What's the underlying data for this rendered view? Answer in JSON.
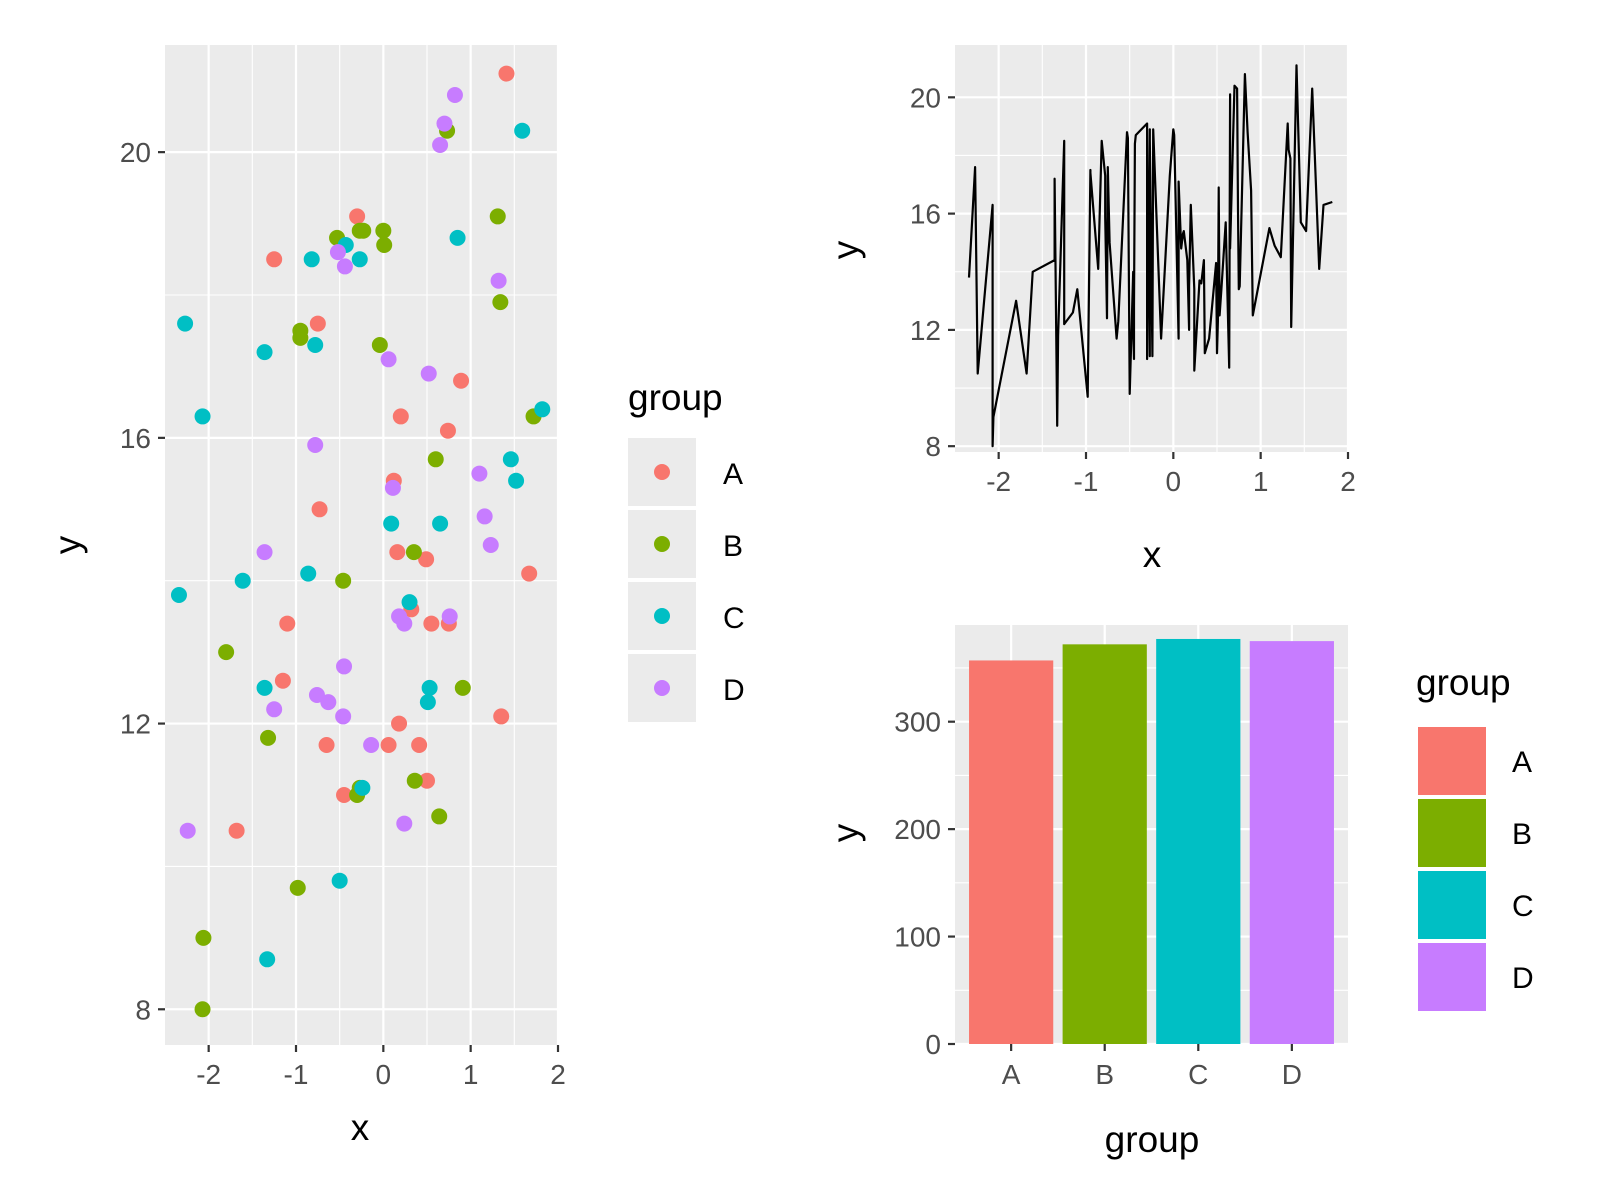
{
  "chart_data": [
    {
      "type": "scatter",
      "xlabel": "x",
      "ylabel": "y",
      "xlim": [
        -2.5,
        2.0
      ],
      "ylim": [
        7.5,
        21.5
      ],
      "x_ticks": [
        "-2",
        "-1",
        "0",
        "1",
        "2"
      ],
      "y_ticks": [
        "8",
        "12",
        "16",
        "20"
      ],
      "grid": true,
      "legend": {
        "title": "group",
        "placement": "right",
        "entries": [
          {
            "label": "A",
            "color": "#F8766D"
          },
          {
            "label": "B",
            "color": "#7CAE00"
          },
          {
            "label": "C",
            "color": "#00BFC4"
          },
          {
            "label": "D",
            "color": "#C77CFF"
          }
        ]
      },
      "series": [
        {
          "name": "A",
          "color": "#F8766D",
          "points": [
            [
              1.41,
              21.1
            ],
            [
              -0.3,
              19.1
            ],
            [
              -1.25,
              18.5
            ],
            [
              -0.75,
              17.6
            ],
            [
              0.89,
              16.8
            ],
            [
              0.2,
              16.3
            ],
            [
              0.74,
              16.1
            ],
            [
              0.12,
              15.4
            ],
            [
              -0.73,
              15.0
            ],
            [
              0.16,
              14.4
            ],
            [
              0.49,
              14.3
            ],
            [
              1.67,
              14.1
            ],
            [
              0.32,
              13.6
            ],
            [
              -1.1,
              13.4
            ],
            [
              0.55,
              13.4
            ],
            [
              0.75,
              13.4
            ],
            [
              -1.15,
              12.6
            ],
            [
              1.35,
              12.1
            ],
            [
              0.18,
              12.0
            ],
            [
              -0.65,
              11.7
            ],
            [
              0.06,
              11.7
            ],
            [
              0.41,
              11.7
            ],
            [
              0.5,
              11.2
            ],
            [
              -0.45,
              11.0
            ],
            [
              -1.68,
              10.5
            ]
          ]
        },
        {
          "name": "B",
          "color": "#7CAE00",
          "points": [
            [
              0.73,
              20.3
            ],
            [
              1.31,
              19.1
            ],
            [
              -0.27,
              18.9
            ],
            [
              -0.23,
              18.9
            ],
            [
              0.0,
              18.9
            ],
            [
              -0.53,
              18.8
            ],
            [
              0.01,
              18.7
            ],
            [
              1.34,
              17.9
            ],
            [
              -0.95,
              17.5
            ],
            [
              -0.95,
              17.4
            ],
            [
              -0.04,
              17.3
            ],
            [
              1.72,
              16.3
            ],
            [
              0.6,
              15.7
            ],
            [
              0.35,
              14.4
            ],
            [
              -0.46,
              14.0
            ],
            [
              -1.8,
              13.0
            ],
            [
              0.91,
              12.5
            ],
            [
              -1.32,
              11.8
            ],
            [
              0.36,
              11.2
            ],
            [
              -0.27,
              11.1
            ],
            [
              -0.3,
              11.0
            ],
            [
              0.64,
              10.7
            ],
            [
              -0.98,
              9.7
            ],
            [
              -2.06,
              9.0
            ],
            [
              -2.07,
              8.0
            ]
          ]
        },
        {
          "name": "C",
          "color": "#00BFC4",
          "points": [
            [
              1.59,
              20.3
            ],
            [
              0.85,
              18.8
            ],
            [
              -0.43,
              18.7
            ],
            [
              -0.82,
              18.5
            ],
            [
              -0.27,
              18.5
            ],
            [
              -2.27,
              17.6
            ],
            [
              -0.78,
              17.3
            ],
            [
              -1.36,
              17.2
            ],
            [
              1.82,
              16.4
            ],
            [
              -2.07,
              16.3
            ],
            [
              1.46,
              15.7
            ],
            [
              1.52,
              15.4
            ],
            [
              0.09,
              14.8
            ],
            [
              0.65,
              14.8
            ],
            [
              -0.86,
              14.1
            ],
            [
              -1.61,
              14.0
            ],
            [
              -2.34,
              13.8
            ],
            [
              0.3,
              13.7
            ],
            [
              0.53,
              12.5
            ],
            [
              -1.36,
              12.5
            ],
            [
              0.51,
              12.3
            ],
            [
              -0.24,
              11.1
            ],
            [
              -0.5,
              9.8
            ],
            [
              -1.33,
              8.7
            ]
          ]
        },
        {
          "name": "D",
          "color": "#C77CFF",
          "points": [
            [
              0.82,
              20.8
            ],
            [
              0.7,
              20.4
            ],
            [
              0.65,
              20.1
            ],
            [
              -0.52,
              18.6
            ],
            [
              -0.44,
              18.4
            ],
            [
              1.32,
              18.2
            ],
            [
              0.06,
              17.1
            ],
            [
              0.52,
              16.9
            ],
            [
              -0.78,
              15.9
            ],
            [
              1.1,
              15.5
            ],
            [
              0.11,
              15.3
            ],
            [
              1.16,
              14.9
            ],
            [
              1.23,
              14.5
            ],
            [
              -1.36,
              14.4
            ],
            [
              0.18,
              13.5
            ],
            [
              0.24,
              13.4
            ],
            [
              0.76,
              13.5
            ],
            [
              -0.45,
              12.8
            ],
            [
              -0.76,
              12.4
            ],
            [
              -0.63,
              12.3
            ],
            [
              -1.25,
              12.2
            ],
            [
              -0.46,
              12.1
            ],
            [
              -0.14,
              11.7
            ],
            [
              0.24,
              10.6
            ],
            [
              -2.24,
              10.5
            ]
          ]
        }
      ]
    },
    {
      "type": "line",
      "xlabel": "x",
      "ylabel": "y",
      "xlim": [
        -2.5,
        2.0
      ],
      "ylim": [
        7.8,
        21.8
      ],
      "x_ticks": [
        "-2",
        "-1",
        "0",
        "1",
        "2"
      ],
      "y_ticks": [
        "8",
        "12",
        "16",
        "20"
      ],
      "grid": true,
      "series": [
        {
          "color": "#000000",
          "points": [
            [
              -2.34,
              13.8
            ],
            [
              -2.27,
              17.6
            ],
            [
              -2.24,
              10.5
            ],
            [
              -2.07,
              16.3
            ],
            [
              -2.07,
              8.0
            ],
            [
              -2.06,
              9.0
            ],
            [
              -1.8,
              13.0
            ],
            [
              -1.68,
              10.5
            ],
            [
              -1.61,
              14.0
            ],
            [
              -1.36,
              14.4
            ],
            [
              -1.36,
              17.2
            ],
            [
              -1.33,
              8.7
            ],
            [
              -1.32,
              11.8
            ],
            [
              -1.25,
              18.5
            ],
            [
              -1.25,
              12.2
            ],
            [
              -1.15,
              12.6
            ],
            [
              -1.1,
              13.4
            ],
            [
              -0.98,
              9.7
            ],
            [
              -0.95,
              17.5
            ],
            [
              -0.95,
              17.4
            ],
            [
              -0.86,
              14.1
            ],
            [
              -0.82,
              18.5
            ],
            [
              -0.78,
              17.3
            ],
            [
              -0.78,
              15.9
            ],
            [
              -0.76,
              12.4
            ],
            [
              -0.75,
              17.6
            ],
            [
              -0.73,
              15.0
            ],
            [
              -0.65,
              11.7
            ],
            [
              -0.63,
              12.3
            ],
            [
              -0.53,
              18.8
            ],
            [
              -0.52,
              18.6
            ],
            [
              -0.5,
              9.8
            ],
            [
              -0.46,
              14.0
            ],
            [
              -0.46,
              12.1
            ],
            [
              -0.45,
              11.0
            ],
            [
              -0.45,
              12.8
            ],
            [
              -0.44,
              18.4
            ],
            [
              -0.43,
              18.7
            ],
            [
              -0.3,
              19.1
            ],
            [
              -0.3,
              11.0
            ],
            [
              -0.27,
              18.9
            ],
            [
              -0.27,
              11.1
            ],
            [
              -0.27,
              18.5
            ],
            [
              -0.24,
              11.1
            ],
            [
              -0.23,
              18.9
            ],
            [
              -0.14,
              11.7
            ],
            [
              -0.04,
              17.3
            ],
            [
              0.0,
              18.9
            ],
            [
              0.01,
              18.7
            ],
            [
              0.06,
              11.7
            ],
            [
              0.06,
              17.1
            ],
            [
              0.09,
              14.8
            ],
            [
              0.11,
              15.3
            ],
            [
              0.12,
              15.4
            ],
            [
              0.16,
              14.4
            ],
            [
              0.18,
              12.0
            ],
            [
              0.18,
              13.5
            ],
            [
              0.2,
              16.3
            ],
            [
              0.24,
              13.4
            ],
            [
              0.24,
              10.6
            ],
            [
              0.3,
              13.7
            ],
            [
              0.32,
              13.6
            ],
            [
              0.35,
              14.4
            ],
            [
              0.36,
              11.2
            ],
            [
              0.41,
              11.7
            ],
            [
              0.49,
              14.3
            ],
            [
              0.5,
              11.2
            ],
            [
              0.51,
              12.3
            ],
            [
              0.52,
              16.9
            ],
            [
              0.53,
              12.5
            ],
            [
              0.55,
              13.4
            ],
            [
              0.6,
              15.7
            ],
            [
              0.64,
              10.7
            ],
            [
              0.65,
              20.1
            ],
            [
              0.65,
              14.8
            ],
            [
              0.7,
              20.4
            ],
            [
              0.73,
              20.3
            ],
            [
              0.74,
              16.1
            ],
            [
              0.75,
              13.4
            ],
            [
              0.76,
              13.5
            ],
            [
              0.82,
              20.8
            ],
            [
              0.85,
              18.8
            ],
            [
              0.89,
              16.8
            ],
            [
              0.91,
              12.5
            ],
            [
              1.1,
              15.5
            ],
            [
              1.16,
              14.9
            ],
            [
              1.23,
              14.5
            ],
            [
              1.31,
              19.1
            ],
            [
              1.32,
              18.2
            ],
            [
              1.34,
              17.9
            ],
            [
              1.35,
              12.1
            ],
            [
              1.41,
              21.1
            ],
            [
              1.46,
              15.7
            ],
            [
              1.52,
              15.4
            ],
            [
              1.59,
              20.3
            ],
            [
              1.67,
              14.1
            ],
            [
              1.72,
              16.3
            ],
            [
              1.82,
              16.4
            ]
          ]
        }
      ]
    },
    {
      "type": "bar",
      "xlabel": "group",
      "ylabel": "y",
      "ylim": [
        0,
        390
      ],
      "y_ticks": [
        "0",
        "100",
        "200",
        "300"
      ],
      "categories": [
        "A",
        "B",
        "C",
        "D"
      ],
      "values": [
        357,
        372,
        377,
        375
      ],
      "colors": [
        "#F8766D",
        "#7CAE00",
        "#00BFC4",
        "#C77CFF"
      ],
      "grid": true,
      "legend": {
        "title": "group",
        "placement": "right",
        "entries": [
          {
            "label": "A",
            "color": "#F8766D"
          },
          {
            "label": "B",
            "color": "#7CAE00"
          },
          {
            "label": "C",
            "color": "#00BFC4"
          },
          {
            "label": "D",
            "color": "#C77CFF"
          }
        ]
      }
    }
  ]
}
